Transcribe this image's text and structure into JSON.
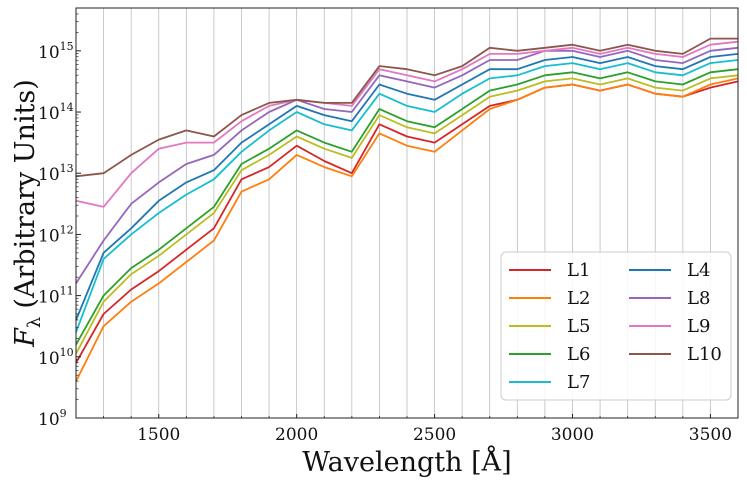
{
  "chart_data": {
    "type": "line",
    "xlabel": "Wavelength [Å]",
    "ylabel": "F_λ (Arbitrary Units)",
    "ylabel_symbol": "F",
    "ylabel_subscript": "λ",
    "ylabel_text": "(Arbitrary Units)",
    "yscale": "log",
    "xlim": [
      1200,
      3600
    ],
    "ylim_exp": [
      9,
      15.7
    ],
    "x_ticks": [
      1500,
      2000,
      2500,
      3000,
      3500
    ],
    "x_tick_labels": [
      "1500",
      "2000",
      "2500",
      "3000",
      "3500"
    ],
    "y_ticks_exp": [
      9,
      10,
      11,
      12,
      13,
      14,
      15
    ],
    "y_tick_base": "10",
    "y_tick_exponents": [
      "9",
      "10",
      "11",
      "12",
      "13",
      "14",
      "15"
    ],
    "vertical_grid_x": [
      1300,
      1400,
      1500,
      1600,
      1700,
      1800,
      1900,
      2000,
      2100,
      2200,
      2300,
      2400,
      2500,
      2600,
      2700,
      2800,
      2900,
      3000,
      3100,
      3200,
      3300,
      3400,
      3500
    ],
    "legend_position": "lower-right",
    "legend_columns": 2,
    "series": [
      {
        "name": "L1",
        "color": "#d62728",
        "x": [
          1200,
          1300,
          1400,
          1500,
          1600,
          1700,
          1800,
          1900,
          2000,
          2100,
          2200,
          2300,
          2400,
          2500,
          2600,
          2700,
          2800,
          2900,
          3000,
          3100,
          3200,
          3300,
          3400,
          3500,
          3600
        ],
        "log10_flux": [
          9.9,
          10.7,
          11.1,
          11.4,
          11.75,
          12.1,
          12.9,
          13.1,
          13.45,
          13.2,
          13.0,
          13.8,
          13.6,
          13.5,
          13.8,
          14.1,
          14.2,
          14.4,
          14.45,
          14.35,
          14.45,
          14.3,
          14.25,
          14.4,
          14.5
        ]
      },
      {
        "name": "L2",
        "color": "#ff7f0e",
        "x": [
          1200,
          1300,
          1400,
          1500,
          1600,
          1700,
          1800,
          1900,
          2000,
          2100,
          2200,
          2300,
          2400,
          2500,
          2600,
          2700,
          2800,
          2900,
          3000,
          3100,
          3200,
          3300,
          3400,
          3500,
          3600
        ],
        "log10_flux": [
          9.6,
          10.5,
          10.9,
          11.2,
          11.55,
          11.9,
          12.7,
          12.9,
          13.3,
          13.1,
          12.95,
          13.65,
          13.45,
          13.35,
          13.7,
          14.05,
          14.2,
          14.4,
          14.45,
          14.35,
          14.45,
          14.3,
          14.25,
          14.45,
          14.55
        ]
      },
      {
        "name": "L5",
        "color": "#bcbd22",
        "x": [
          1200,
          1300,
          1400,
          1500,
          1600,
          1700,
          1800,
          1900,
          2000,
          2100,
          2200,
          2300,
          2400,
          2500,
          2600,
          2700,
          2800,
          2900,
          3000,
          3100,
          3200,
          3300,
          3400,
          3500,
          3600
        ],
        "log10_flux": [
          10.05,
          10.9,
          11.35,
          11.65,
          12.0,
          12.35,
          13.05,
          13.3,
          13.6,
          13.4,
          13.25,
          13.95,
          13.75,
          13.65,
          13.95,
          14.25,
          14.35,
          14.5,
          14.55,
          14.45,
          14.55,
          14.4,
          14.35,
          14.55,
          14.6
        ]
      },
      {
        "name": "L6",
        "color": "#2ca02c",
        "x": [
          1200,
          1300,
          1400,
          1500,
          1600,
          1700,
          1800,
          1900,
          2000,
          2100,
          2200,
          2300,
          2400,
          2500,
          2600,
          2700,
          2800,
          2900,
          3000,
          3100,
          3200,
          3300,
          3400,
          3500,
          3600
        ],
        "log10_flux": [
          10.2,
          11.0,
          11.45,
          11.75,
          12.1,
          12.45,
          13.15,
          13.4,
          13.7,
          13.5,
          13.35,
          14.05,
          13.85,
          13.75,
          14.05,
          14.35,
          14.45,
          14.6,
          14.65,
          14.55,
          14.65,
          14.5,
          14.45,
          14.65,
          14.7
        ]
      },
      {
        "name": "L7",
        "color": "#17becf",
        "x": [
          1200,
          1300,
          1400,
          1500,
          1600,
          1700,
          1800,
          1900,
          2000,
          2100,
          2200,
          2300,
          2400,
          2500,
          2600,
          2700,
          2800,
          2900,
          3000,
          3100,
          3200,
          3300,
          3400,
          3500,
          3600
        ],
        "log10_flux": [
          10.4,
          11.6,
          12.0,
          12.35,
          12.65,
          12.9,
          13.35,
          13.7,
          14.0,
          13.8,
          13.7,
          14.3,
          14.1,
          14.0,
          14.3,
          14.55,
          14.6,
          14.75,
          14.8,
          14.7,
          14.8,
          14.65,
          14.6,
          14.8,
          14.85
        ]
      },
      {
        "name": "L4",
        "color": "#1f77b4",
        "x": [
          1200,
          1300,
          1400,
          1500,
          1600,
          1700,
          1800,
          1900,
          2000,
          2100,
          2200,
          2300,
          2400,
          2500,
          2600,
          2700,
          2800,
          2900,
          3000,
          3100,
          3200,
          3300,
          3400,
          3500,
          3600
        ],
        "log10_flux": [
          10.6,
          11.7,
          12.1,
          12.55,
          12.85,
          13.05,
          13.5,
          13.8,
          14.1,
          13.95,
          13.85,
          14.45,
          14.3,
          14.2,
          14.45,
          14.7,
          14.7,
          14.85,
          14.9,
          14.8,
          14.9,
          14.75,
          14.7,
          14.9,
          14.95
        ]
      },
      {
        "name": "L8",
        "color": "#9467bd",
        "x": [
          1200,
          1300,
          1400,
          1500,
          1600,
          1700,
          1800,
          1900,
          2000,
          2100,
          2200,
          2300,
          2400,
          2500,
          2600,
          2700,
          2800,
          2900,
          3000,
          3100,
          3200,
          3300,
          3400,
          3500,
          3600
        ],
        "log10_flux": [
          11.2,
          11.9,
          12.5,
          12.85,
          13.15,
          13.3,
          13.7,
          14.0,
          14.2,
          14.05,
          14.0,
          14.6,
          14.5,
          14.4,
          14.6,
          14.85,
          14.85,
          15.0,
          15.0,
          14.9,
          15.0,
          14.85,
          14.8,
          15.0,
          15.05
        ]
      },
      {
        "name": "L9",
        "color": "#e377c2",
        "x": [
          1200,
          1300,
          1400,
          1500,
          1600,
          1700,
          1800,
          1900,
          2000,
          2100,
          2200,
          2300,
          2400,
          2500,
          2600,
          2700,
          2800,
          2900,
          3000,
          3100,
          3200,
          3300,
          3400,
          3500,
          3600
        ],
        "log10_flux": [
          12.55,
          12.45,
          13.0,
          13.4,
          13.5,
          13.5,
          13.85,
          14.1,
          14.2,
          14.15,
          14.1,
          14.7,
          14.6,
          14.5,
          14.7,
          14.95,
          14.95,
          15.0,
          15.05,
          14.95,
          15.05,
          14.95,
          14.9,
          15.1,
          15.15
        ]
      },
      {
        "name": "L10",
        "color": "#8c564b",
        "x": [
          1200,
          1300,
          1400,
          1500,
          1600,
          1700,
          1800,
          1900,
          2000,
          2100,
          2200,
          2300,
          2400,
          2500,
          2600,
          2700,
          2800,
          2900,
          3000,
          3100,
          3200,
          3300,
          3400,
          3500,
          3600
        ],
        "log10_flux": [
          12.95,
          13.0,
          13.3,
          13.55,
          13.7,
          13.6,
          13.95,
          14.15,
          14.2,
          14.15,
          14.15,
          14.75,
          14.7,
          14.6,
          14.75,
          15.05,
          15.0,
          15.05,
          15.1,
          15.0,
          15.1,
          15.0,
          14.95,
          15.2,
          15.2
        ]
      }
    ]
  }
}
